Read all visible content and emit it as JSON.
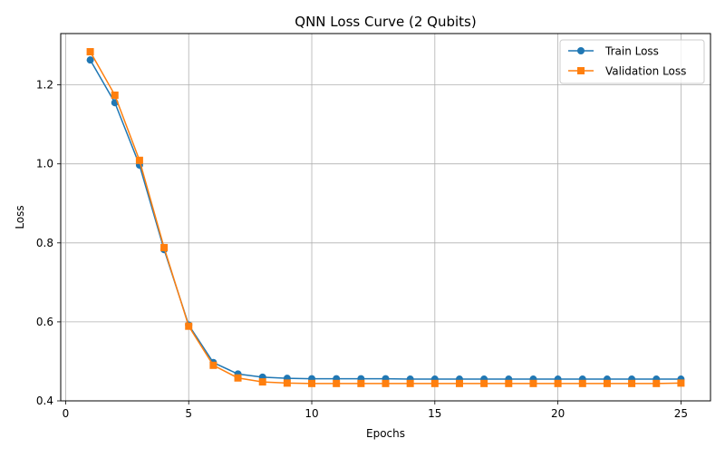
{
  "chart_data": {
    "type": "line",
    "title": "QNN Loss Curve (2 Qubits)",
    "xlabel": "Epochs",
    "ylabel": "Loss",
    "xlim": [
      -0.2,
      26.2
    ],
    "ylim": [
      0.4,
      1.33
    ],
    "xticks": [
      0,
      5,
      10,
      15,
      20,
      25
    ],
    "yticks": [
      0.4,
      0.6,
      0.8,
      1.0,
      1.2
    ],
    "xtick_labels": [
      "0",
      "5",
      "10",
      "15",
      "20",
      "25"
    ],
    "ytick_labels": [
      "0.4",
      "0.6",
      "0.8",
      "1.0",
      "1.2"
    ],
    "grid": true,
    "legend_position": "top-right",
    "x": [
      1,
      2,
      3,
      4,
      5,
      6,
      7,
      8,
      9,
      10,
      11,
      12,
      13,
      14,
      15,
      16,
      17,
      18,
      19,
      20,
      21,
      22,
      23,
      24,
      25
    ],
    "series": [
      {
        "name": "Train Loss",
        "color": "#1f77b4",
        "marker": "circle",
        "values": [
          1.263,
          1.155,
          0.997,
          0.783,
          0.592,
          0.497,
          0.468,
          0.46,
          0.457,
          0.456,
          0.456,
          0.456,
          0.456,
          0.455,
          0.455,
          0.455,
          0.455,
          0.455,
          0.455,
          0.455,
          0.455,
          0.455,
          0.455,
          0.455,
          0.455
        ]
      },
      {
        "name": "Validation Loss",
        "color": "#ff7f0e",
        "marker": "square",
        "values": [
          1.284,
          1.174,
          1.009,
          0.788,
          0.589,
          0.49,
          0.458,
          0.448,
          0.445,
          0.444,
          0.444,
          0.444,
          0.444,
          0.444,
          0.444,
          0.444,
          0.444,
          0.444,
          0.444,
          0.444,
          0.444,
          0.444,
          0.444,
          0.444,
          0.445
        ]
      }
    ]
  }
}
